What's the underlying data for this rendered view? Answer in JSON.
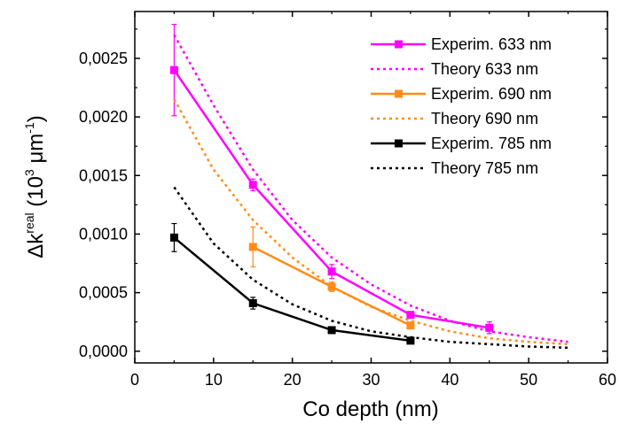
{
  "chart_data": {
    "type": "line",
    "xlabel": "Co depth (nm)",
    "ylabel": {
      "prefix": "Δk",
      "sup": "real",
      "mid": " (10",
      "exp": "3",
      "unit": " μm",
      "unit_exp": "-1",
      "suffix": ")"
    },
    "xlim": [
      0,
      60
    ],
    "ylim": [
      -0.0001,
      0.0029
    ],
    "xticks": [
      0,
      10,
      20,
      30,
      40,
      50,
      60
    ],
    "yticks": [
      0.0,
      0.0005,
      0.001,
      0.0015,
      0.002,
      0.0025
    ],
    "xtick_labels": [
      "0",
      "10",
      "20",
      "30",
      "40",
      "50",
      "60"
    ],
    "ytick_labels": [
      "0,0000",
      "0,0005",
      "0,0010",
      "0,0015",
      "0,0020",
      "0,0025"
    ],
    "grid": false,
    "legend_position": "top-right",
    "series": [
      {
        "name": "Experim. 633 nm",
        "style": "solid-square",
        "color": "#ff00ff",
        "x": [
          5,
          15,
          25,
          35,
          45
        ],
        "y": [
          0.0024,
          0.00142,
          0.00068,
          0.00031,
          0.0002
        ],
        "yerr": [
          0.00039,
          5e-05,
          6e-05,
          2e-05,
          5e-05
        ]
      },
      {
        "name": "Theory 633 nm",
        "style": "dotted",
        "color": "#ff00ff",
        "x": [
          5,
          10,
          15,
          20,
          25,
          30,
          35,
          40,
          45,
          50,
          55
        ],
        "y": [
          0.0027,
          0.0021,
          0.00155,
          0.00112,
          0.0008,
          0.00057,
          0.00039,
          0.00026,
          0.00017,
          0.00012,
          8e-05
        ]
      },
      {
        "name": "Experim. 690 nm",
        "style": "solid-square",
        "color": "#ff8c1a",
        "x": [
          15,
          25,
          35
        ],
        "y": [
          0.00089,
          0.00055,
          0.00022
        ],
        "yerr": [
          0.00017,
          4e-05,
          2e-05
        ]
      },
      {
        "name": "Theory 690 nm",
        "style": "dotted",
        "color": "#ff8c1a",
        "x": [
          5,
          10,
          15,
          20,
          25,
          30,
          35,
          40,
          45,
          50,
          55
        ],
        "y": [
          0.00215,
          0.00155,
          0.00112,
          0.0008,
          0.00055,
          0.00038,
          0.00026,
          0.00017,
          0.00011,
          8e-05,
          6e-05
        ]
      },
      {
        "name": "Experim. 785 nm",
        "style": "solid-square",
        "color": "#000000",
        "x": [
          5,
          15,
          25,
          35
        ],
        "y": [
          0.00097,
          0.00041,
          0.00018,
          9e-05
        ],
        "yerr": [
          0.00012,
          5e-05,
          2e-05,
          1e-05
        ]
      },
      {
        "name": "Theory 785 nm",
        "style": "dotted",
        "color": "#000000",
        "x": [
          5,
          10,
          15,
          20,
          25,
          30,
          35,
          40,
          45,
          50,
          55
        ],
        "y": [
          0.0014,
          0.00092,
          0.00061,
          0.0004,
          0.00026,
          0.00017,
          0.00012,
          8e-05,
          6e-05,
          4e-05,
          3e-05
        ]
      }
    ]
  }
}
